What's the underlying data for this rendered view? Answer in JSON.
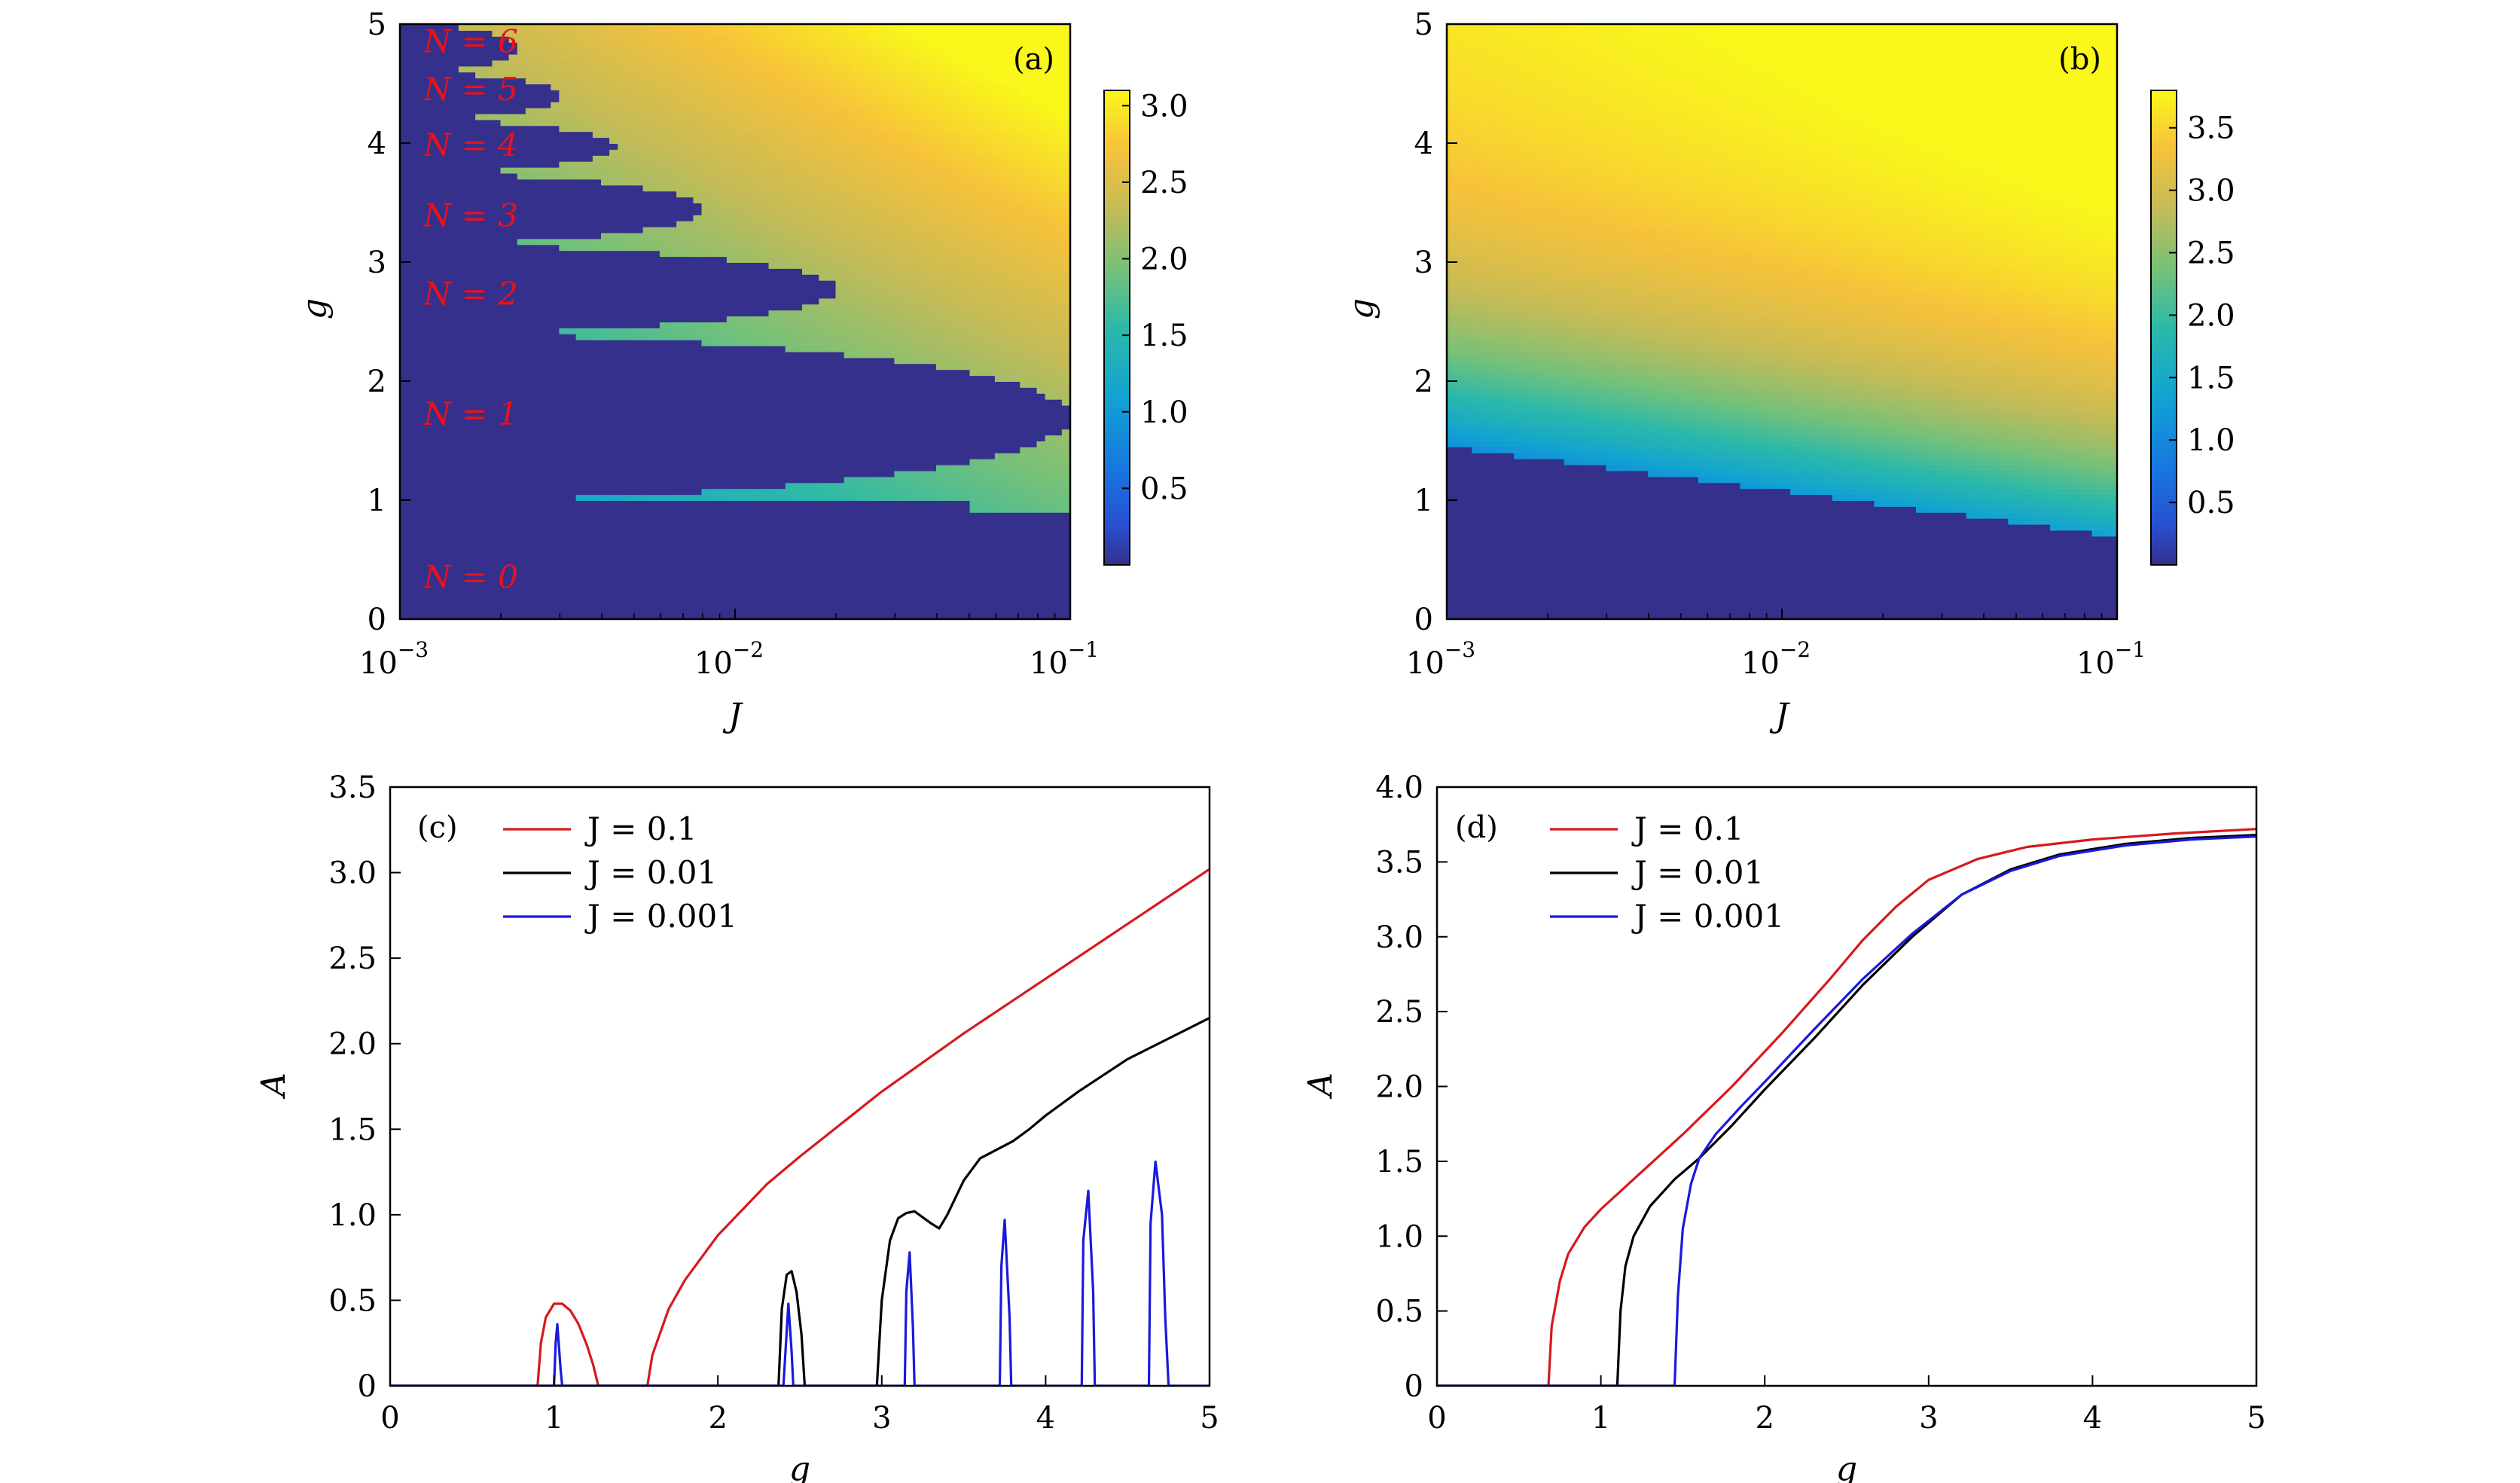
{
  "chart_data": [
    {
      "panel": "(a)",
      "type": "heatmap",
      "xlabel": "J",
      "ylabel": "g",
      "xscale": "log",
      "xlim": [
        0.001,
        0.1
      ],
      "ylim": [
        0,
        5
      ],
      "xticks": [
        {
          "value": 0.001,
          "base": "10",
          "exp": "−3"
        },
        {
          "value": 0.01,
          "base": "10",
          "exp": "−2"
        },
        {
          "value": 0.1,
          "base": "10",
          "exp": "−1"
        }
      ],
      "yticks": [
        "0",
        "1",
        "2",
        "3",
        "4",
        "5"
      ],
      "colorbar": {
        "min": 0,
        "max": 3.1,
        "ticks": [
          "0.5",
          "1.0",
          "1.5",
          "2.0",
          "2.5",
          "3.0"
        ]
      },
      "regions": [
        {
          "label": "N = 0",
          "J": 0.00105,
          "g": 0.35
        },
        {
          "label": "N = 1",
          "J": 0.00105,
          "g": 1.72
        },
        {
          "label": "N = 2",
          "J": 0.00105,
          "g": 2.73
        },
        {
          "label": "N = 3",
          "J": 0.00105,
          "g": 3.39
        },
        {
          "label": "N = 4",
          "J": 0.00105,
          "g": 3.98
        },
        {
          "label": "N = 5",
          "J": 0.00105,
          "g": 4.45
        },
        {
          "label": "N = 6",
          "J": 0.00105,
          "g": 4.85
        }
      ],
      "ordered_domes": [
        {
          "g_low": 1.0,
          "g_high": 2.4,
          "J_tip": 0.1
        },
        {
          "g_low": 2.4,
          "g_high": 3.15,
          "J_tip": 0.02
        },
        {
          "g_low": 3.15,
          "g_high": 3.75,
          "J_tip": 0.008
        },
        {
          "g_low": 3.75,
          "g_high": 4.2,
          "J_tip": 0.0045
        },
        {
          "g_low": 4.2,
          "g_high": 4.6,
          "J_tip": 0.003
        },
        {
          "g_low": 4.6,
          "g_high": 5.0,
          "J_tip": 0.0022
        }
      ]
    },
    {
      "panel": "(b)",
      "type": "heatmap",
      "xlabel": "J",
      "ylabel": "g",
      "xscale": "log",
      "xlim": [
        0.001,
        0.1
      ],
      "ylim": [
        0,
        5
      ],
      "xticks": [
        {
          "value": 0.001,
          "base": "10",
          "exp": "−3"
        },
        {
          "value": 0.01,
          "base": "10",
          "exp": "−2"
        },
        {
          "value": 0.1,
          "base": "10",
          "exp": "−1"
        }
      ],
      "yticks": [
        "0",
        "1",
        "2",
        "3",
        "4",
        "5"
      ],
      "colorbar": {
        "min": 0,
        "max": 3.8,
        "ticks": [
          "0.5",
          "1.0",
          "1.5",
          "2.0",
          "2.5",
          "3.0",
          "3.5"
        ]
      },
      "boundary": [
        [
          0.001,
          1.45
        ],
        [
          0.01,
          1.08
        ],
        [
          0.1,
          0.7
        ]
      ]
    },
    {
      "panel": "(c)",
      "type": "line",
      "xlabel": "g",
      "ylabel": "A",
      "xlim": [
        0,
        5
      ],
      "ylim": [
        0,
        3.5
      ],
      "xticks": [
        "0",
        "1",
        "2",
        "3",
        "4",
        "5"
      ],
      "yticks": [
        "0",
        "0.5",
        "1.0",
        "1.5",
        "2.0",
        "2.5",
        "3.0",
        "3.5"
      ],
      "legend": "top-left",
      "series": [
        {
          "name": "J = 0.1",
          "color": "#d7191c",
          "x": [
            0,
            0.9,
            0.92,
            0.95,
            1.0,
            1.05,
            1.1,
            1.15,
            1.2,
            1.24,
            1.27,
            1.57,
            1.6,
            1.7,
            1.8,
            2.0,
            2.3,
            2.5,
            3.0,
            3.5,
            4.0,
            4.5,
            5.0
          ],
          "y": [
            0,
            0,
            0.25,
            0.4,
            0.48,
            0.48,
            0.44,
            0.36,
            0.24,
            0.12,
            0,
            0,
            0.18,
            0.45,
            0.62,
            0.88,
            1.18,
            1.34,
            1.72,
            2.06,
            2.38,
            2.7,
            3.02
          ]
        },
        {
          "name": "J = 0.01",
          "color": "#000000",
          "x": [
            0,
            2.37,
            2.39,
            2.42,
            2.45,
            2.48,
            2.51,
            2.53,
            2.97,
            3.0,
            3.05,
            3.1,
            3.15,
            3.2,
            3.3,
            3.35,
            3.4,
            3.5,
            3.6,
            3.8,
            3.9,
            4.0,
            4.2,
            4.5,
            5.0
          ],
          "y": [
            0,
            0,
            0.45,
            0.65,
            0.67,
            0.55,
            0.3,
            0,
            0,
            0.5,
            0.85,
            0.98,
            1.01,
            1.02,
            0.95,
            0.92,
            1.0,
            1.2,
            1.33,
            1.43,
            1.5,
            1.58,
            1.72,
            1.91,
            2.15
          ]
        },
        {
          "name": "J = 0.001",
          "color": "#1a1adb",
          "x": [
            0,
            1.0,
            1.01,
            1.02,
            1.04,
            1.05,
            2.4,
            2.42,
            2.43,
            2.45,
            2.46,
            3.14,
            3.15,
            3.17,
            3.19,
            3.2,
            3.72,
            3.73,
            3.75,
            3.78,
            3.79,
            4.22,
            4.23,
            4.26,
            4.29,
            4.3,
            4.63,
            4.64,
            4.67,
            4.71,
            4.73,
            4.75,
            5.0
          ],
          "y": [
            0,
            0,
            0.25,
            0.36,
            0.1,
            0,
            0,
            0.32,
            0.48,
            0.2,
            0,
            0,
            0.55,
            0.78,
            0.35,
            0,
            0,
            0.7,
            0.97,
            0.4,
            0,
            0,
            0.85,
            1.14,
            0.55,
            0,
            0,
            0.95,
            1.31,
            1.0,
            0.4,
            0,
            0
          ]
        }
      ]
    },
    {
      "panel": "(d)",
      "type": "line",
      "xlabel": "g",
      "ylabel": "A",
      "xlim": [
        0,
        5
      ],
      "ylim": [
        0,
        4.0
      ],
      "xticks": [
        "0",
        "1",
        "2",
        "3",
        "4",
        "5"
      ],
      "yticks": [
        "0",
        "0.5",
        "1.0",
        "1.5",
        "2.0",
        "2.5",
        "3.0",
        "3.5",
        "4.0"
      ],
      "legend": "top-left",
      "series": [
        {
          "name": "J = 0.1",
          "color": "#d7191c",
          "x": [
            0,
            0.68,
            0.7,
            0.75,
            0.8,
            0.9,
            1.0,
            1.2,
            1.5,
            1.8,
            2.1,
            2.4,
            2.6,
            2.8,
            3.0,
            3.3,
            3.6,
            4.0,
            4.5,
            5.0
          ],
          "y": [
            0,
            0,
            0.4,
            0.7,
            0.88,
            1.06,
            1.18,
            1.38,
            1.68,
            2.0,
            2.35,
            2.72,
            2.98,
            3.2,
            3.38,
            3.52,
            3.6,
            3.65,
            3.69,
            3.72
          ]
        },
        {
          "name": "J = 0.01",
          "color": "#000000",
          "x": [
            0,
            1.1,
            1.12,
            1.15,
            1.2,
            1.3,
            1.45,
            1.6,
            1.8,
            2.0,
            2.3,
            2.6,
            2.9,
            3.2,
            3.5,
            3.8,
            4.2,
            4.6,
            5.0
          ],
          "y": [
            0,
            0,
            0.5,
            0.8,
            1.0,
            1.2,
            1.38,
            1.52,
            1.74,
            1.98,
            2.32,
            2.68,
            3.0,
            3.28,
            3.45,
            3.55,
            3.62,
            3.66,
            3.68
          ]
        },
        {
          "name": "J = 0.001",
          "color": "#1a1adb",
          "x": [
            0,
            1.45,
            1.47,
            1.5,
            1.55,
            1.6,
            1.7,
            1.85,
            2.0,
            2.3,
            2.6,
            2.9,
            3.2,
            3.5,
            3.8,
            4.2,
            4.6,
            5.0
          ],
          "y": [
            0,
            0,
            0.6,
            1.05,
            1.35,
            1.52,
            1.68,
            1.86,
            2.03,
            2.38,
            2.72,
            3.02,
            3.28,
            3.44,
            3.54,
            3.61,
            3.65,
            3.67
          ]
        }
      ]
    }
  ],
  "colors": {
    "viridis_low": "#34308c",
    "viridis_high": "#f9f81a"
  }
}
